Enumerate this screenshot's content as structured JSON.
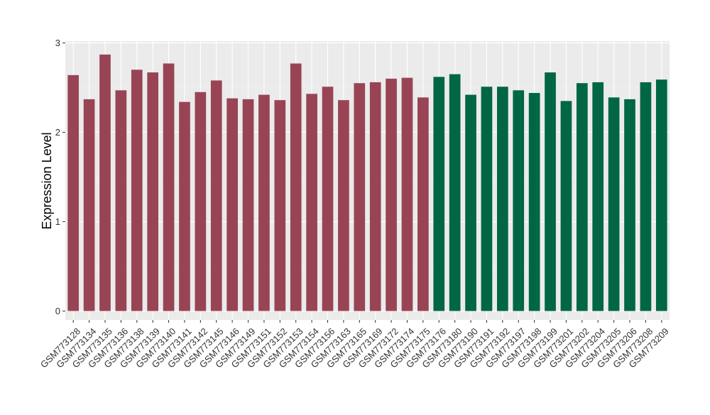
{
  "chart_data": {
    "type": "bar",
    "title": "",
    "xlabel": "",
    "ylabel": "Expression Level",
    "ylim": [
      -0.1,
      3.02
    ],
    "yticks": [
      0,
      1,
      2,
      3
    ],
    "grid": true,
    "legend": "none",
    "categories": [
      "GSM773128",
      "GSM773134",
      "GSM773135",
      "GSM773136",
      "GSM773138",
      "GSM773139",
      "GSM773140",
      "GSM773141",
      "GSM773142",
      "GSM773145",
      "GSM773146",
      "GSM773149",
      "GSM773151",
      "GSM773152",
      "GSM773153",
      "GSM773154",
      "GSM773156",
      "GSM773163",
      "GSM773165",
      "GSM773169",
      "GSM773172",
      "GSM773174",
      "GSM773175",
      "GSM773176",
      "GSM773180",
      "GSM773190",
      "GSM773191",
      "GSM773192",
      "GSM773197",
      "GSM773198",
      "GSM773199",
      "GSM773201",
      "GSM773202",
      "GSM773204",
      "GSM773205",
      "GSM773206",
      "GSM773208",
      "GSM773209"
    ],
    "values": [
      2.64,
      2.37,
      2.87,
      2.47,
      2.7,
      2.67,
      2.77,
      2.34,
      2.45,
      2.58,
      2.38,
      2.37,
      2.42,
      2.36,
      2.77,
      2.43,
      2.51,
      2.36,
      2.55,
      2.56,
      2.6,
      2.61,
      2.39,
      2.62,
      2.65,
      2.42,
      2.51,
      2.51,
      2.47,
      2.44,
      2.67,
      2.35,
      2.55,
      2.56,
      2.39,
      2.37,
      2.56,
      2.59
    ],
    "groups": [
      "g1",
      "g1",
      "g1",
      "g1",
      "g1",
      "g1",
      "g1",
      "g1",
      "g1",
      "g1",
      "g1",
      "g1",
      "g1",
      "g1",
      "g1",
      "g1",
      "g1",
      "g1",
      "g1",
      "g1",
      "g1",
      "g1",
      "g1",
      "g2",
      "g2",
      "g2",
      "g2",
      "g2",
      "g2",
      "g2",
      "g2",
      "g2",
      "g2",
      "g2",
      "g2",
      "g2",
      "g2",
      "g2"
    ],
    "colors": {
      "g1": "#994455",
      "g2": "#006644",
      "panel_background": "#ebebeb",
      "grid_major": "#ffffff",
      "grid_minor": "#f5f5f5"
    }
  }
}
